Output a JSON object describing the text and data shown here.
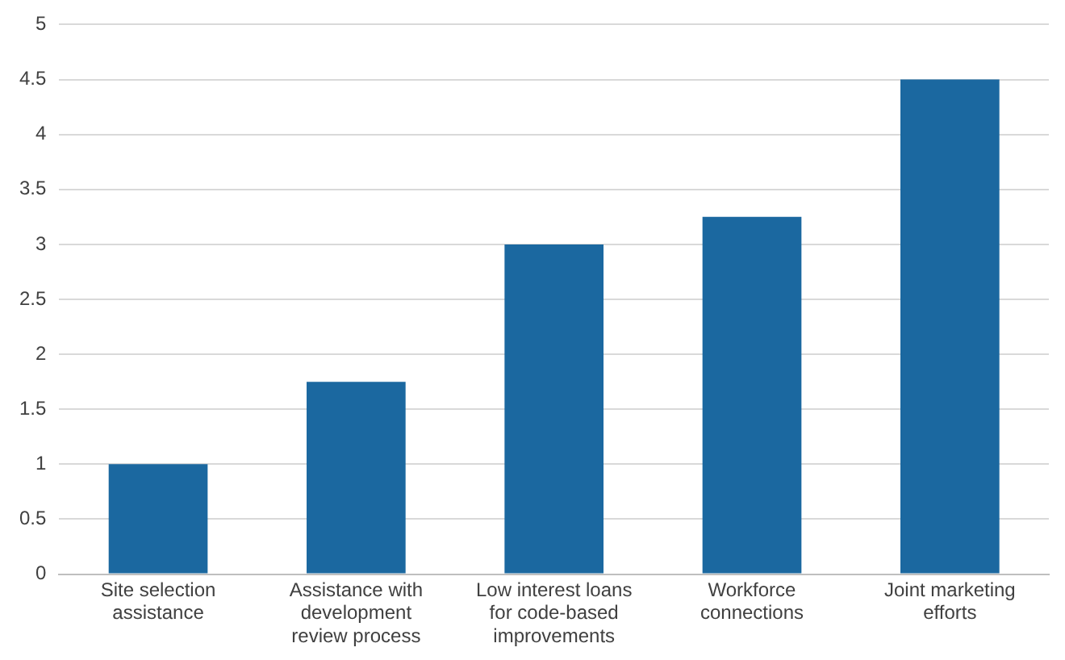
{
  "chart_data": {
    "type": "bar",
    "categories": [
      "Site selection assistance",
      "Assistance with development review process",
      "Low interest loans for code-based improvements",
      "Workforce connections",
      "Joint marketing efforts"
    ],
    "values": [
      1,
      1.75,
      3,
      3.25,
      4.5
    ],
    "color": "#1b68a0",
    "ylim": [
      0,
      5
    ],
    "yticks": [
      0,
      0.5,
      1,
      1.5,
      2,
      2.5,
      3,
      3.5,
      4,
      4.5,
      5
    ],
    "grid": "y",
    "legend": false
  }
}
